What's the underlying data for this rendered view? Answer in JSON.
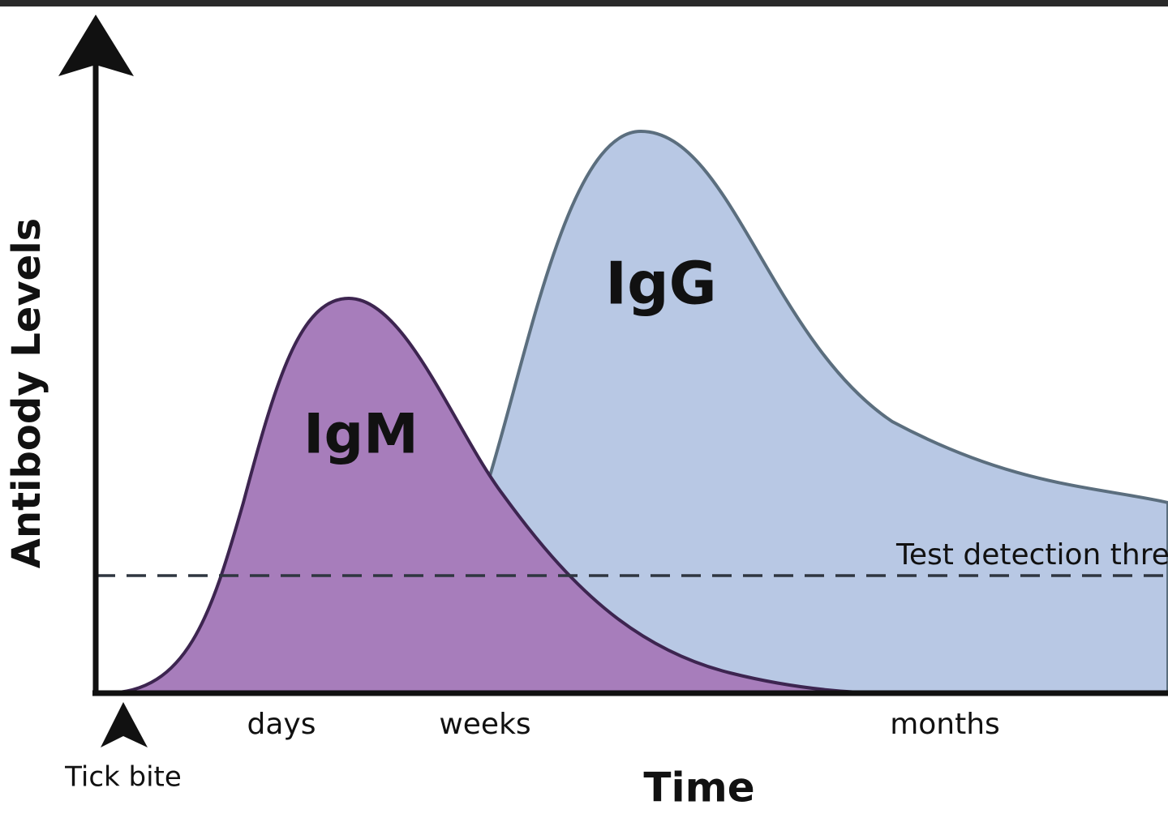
{
  "y_axis_label": "Antibody Levels",
  "x_axis_label": "Time",
  "curves": [
    {
      "label": "IgM"
    },
    {
      "label": "IgG"
    }
  ],
  "threshold_label": "Test detection threshold",
  "time_labels": [
    "days",
    "weeks",
    "months"
  ],
  "event_label": "Tick bite"
}
